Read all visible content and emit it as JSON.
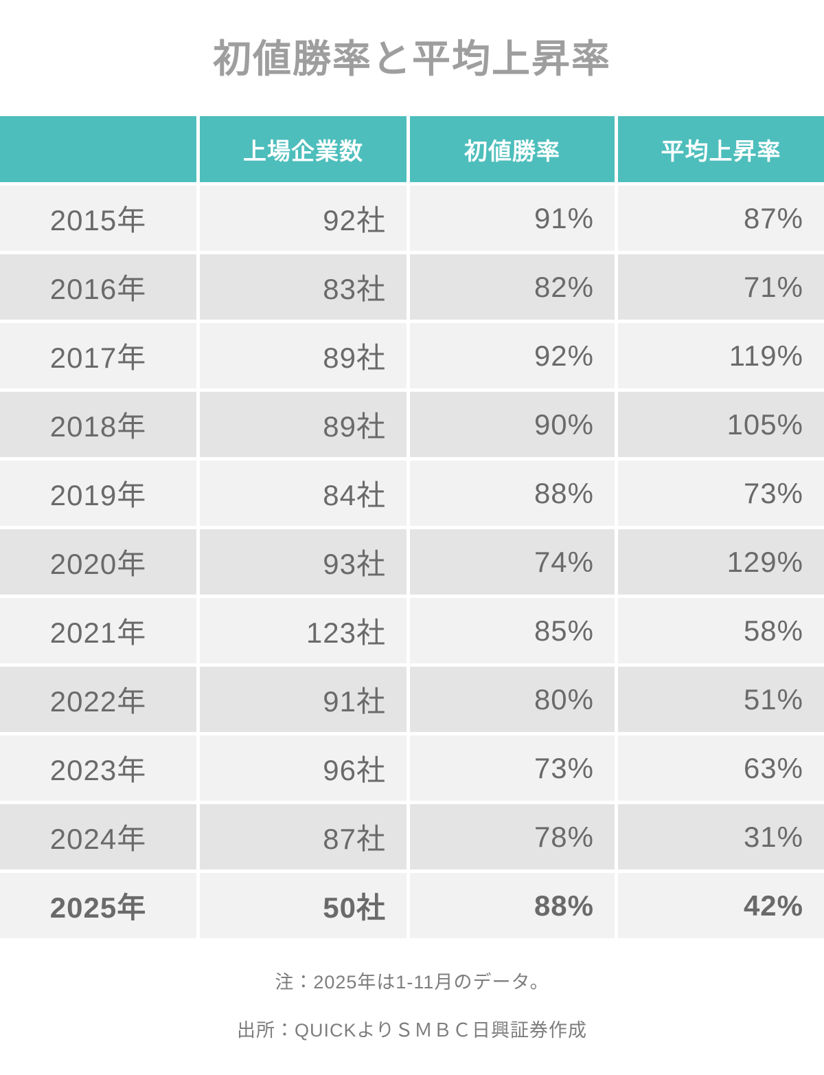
{
  "title": "初値勝率と平均上昇率",
  "table": {
    "columns": [
      "",
      "上場企業数",
      "初値勝率",
      "平均上昇率"
    ],
    "rows": [
      {
        "year": "2015年",
        "companies": "92社",
        "win_rate": "91%",
        "avg_gain": "87%",
        "bold": false
      },
      {
        "year": "2016年",
        "companies": "83社",
        "win_rate": "82%",
        "avg_gain": "71%",
        "bold": false
      },
      {
        "year": "2017年",
        "companies": "89社",
        "win_rate": "92%",
        "avg_gain": "119%",
        "bold": false
      },
      {
        "year": "2018年",
        "companies": "89社",
        "win_rate": "90%",
        "avg_gain": "105%",
        "bold": false
      },
      {
        "year": "2019年",
        "companies": "84社",
        "win_rate": "88%",
        "avg_gain": "73%",
        "bold": false
      },
      {
        "year": "2020年",
        "companies": "93社",
        "win_rate": "74%",
        "avg_gain": "129%",
        "bold": false
      },
      {
        "year": "2021年",
        "companies": "123社",
        "win_rate": "85%",
        "avg_gain": "58%",
        "bold": false
      },
      {
        "year": "2022年",
        "companies": "91社",
        "win_rate": "80%",
        "avg_gain": "51%",
        "bold": false
      },
      {
        "year": "2023年",
        "companies": "96社",
        "win_rate": "73%",
        "avg_gain": "63%",
        "bold": false
      },
      {
        "year": "2024年",
        "companies": "87社",
        "win_rate": "78%",
        "avg_gain": "31%",
        "bold": false
      },
      {
        "year": "2025年",
        "companies": "50社",
        "win_rate": "88%",
        "avg_gain": "42%",
        "bold": true
      }
    ]
  },
  "notes": {
    "note": "注：2025年は1-11月のデータ。",
    "source": "出所：QUICKよりＳＭＢＣ日興証券作成"
  },
  "colors": {
    "header_bg": "#4dbebc",
    "header_text": "#ffffff",
    "row_light": "#f2f2f2",
    "row_dark": "#e4e4e4",
    "cell_text": "#6a6a6a",
    "title_text": "#9e9e9e",
    "note_text": "#7d7d7d"
  },
  "chart_data": {
    "type": "table",
    "title": "初値勝率と平均上昇率",
    "columns": [
      "",
      "上場企業数",
      "初値勝率",
      "平均上昇率"
    ],
    "categories": [
      "2015年",
      "2016年",
      "2017年",
      "2018年",
      "2019年",
      "2020年",
      "2021年",
      "2022年",
      "2023年",
      "2024年",
      "2025年"
    ],
    "series": [
      {
        "name": "上場企業数",
        "unit": "社",
        "values": [
          92,
          83,
          89,
          89,
          84,
          93,
          123,
          91,
          96,
          87,
          50
        ]
      },
      {
        "name": "初値勝率",
        "unit": "%",
        "values": [
          91,
          82,
          92,
          90,
          88,
          74,
          85,
          80,
          73,
          78,
          88
        ]
      },
      {
        "name": "平均上昇率",
        "unit": "%",
        "values": [
          87,
          71,
          119,
          105,
          73,
          129,
          58,
          51,
          63,
          31,
          42
        ]
      }
    ],
    "annotations": [
      "注：2025年は1-11月のデータ。",
      "出所：QUICKよりＳＭＢＣ日興証券作成"
    ]
  }
}
